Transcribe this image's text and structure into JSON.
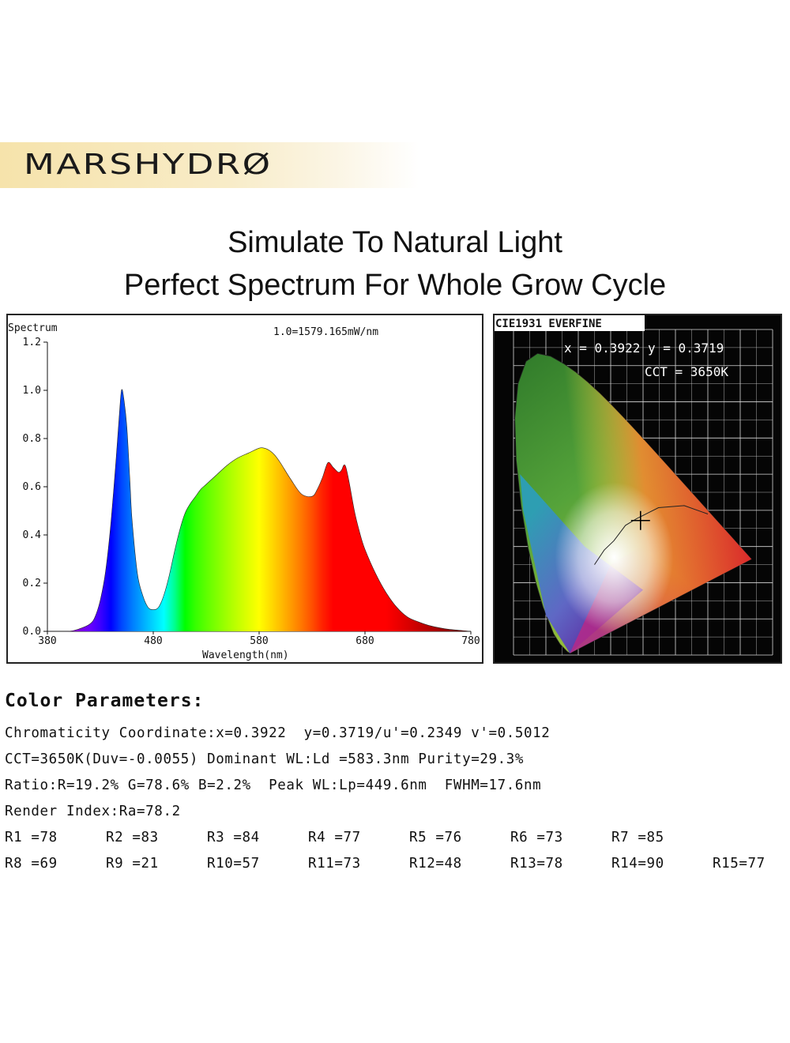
{
  "brand": {
    "logo_text": "MARSHYDRØ"
  },
  "headline": {
    "line1": "Simulate To Natural Light",
    "line2": "Perfect Spectrum For Whole Grow Cycle"
  },
  "chart_data": [
    {
      "type": "area",
      "title": "Spectrum",
      "annotation": "1.0=1579.165mW/nm",
      "xlabel": "Wavelength(nm)",
      "ylabel": "",
      "xlim": [
        380,
        780
      ],
      "ylim": [
        0,
        1.2
      ],
      "x_ticks": [
        "380",
        "480",
        "580",
        "680",
        "780"
      ],
      "y_ticks": [
        "0.0",
        "0.2",
        "0.4",
        "0.6",
        "0.8",
        "1.0",
        "1.2"
      ],
      "x": [
        380,
        400,
        410,
        420,
        425,
        430,
        435,
        440,
        445,
        448,
        450,
        452,
        455,
        458,
        460,
        465,
        470,
        475,
        480,
        485,
        490,
        495,
        500,
        505,
        510,
        515,
        520,
        525,
        530,
        540,
        550,
        560,
        570,
        580,
        585,
        590,
        595,
        600,
        610,
        620,
        630,
        635,
        640,
        645,
        650,
        655,
        658,
        660,
        662,
        665,
        670,
        675,
        680,
        690,
        700,
        710,
        720,
        730,
        740,
        750,
        760,
        770,
        780
      ],
      "values": [
        0.0,
        0.0,
        0.01,
        0.03,
        0.06,
        0.13,
        0.25,
        0.45,
        0.72,
        0.9,
        1.0,
        0.97,
        0.85,
        0.62,
        0.46,
        0.24,
        0.15,
        0.1,
        0.09,
        0.1,
        0.15,
        0.23,
        0.33,
        0.42,
        0.49,
        0.53,
        0.56,
        0.59,
        0.61,
        0.65,
        0.69,
        0.72,
        0.74,
        0.76,
        0.76,
        0.75,
        0.73,
        0.7,
        0.63,
        0.57,
        0.56,
        0.59,
        0.64,
        0.7,
        0.68,
        0.66,
        0.67,
        0.69,
        0.68,
        0.62,
        0.5,
        0.41,
        0.34,
        0.24,
        0.16,
        0.1,
        0.06,
        0.04,
        0.025,
        0.015,
        0.008,
        0.004,
        0.0
      ]
    },
    {
      "type": "scatter",
      "title": "CIE1931 EVERFINE",
      "annotation_xy": "x = 0.3922 y = 0.3719",
      "annotation_cct": "CCT = 3650K",
      "xlim": [
        0,
        0.8
      ],
      "ylim": [
        0,
        0.9
      ],
      "x": [
        0.3922
      ],
      "values": [
        0.3719
      ]
    }
  ],
  "params": {
    "title": "Color Parameters:",
    "line1": "Chromaticity Coordinate:x=0.3922  y=0.3719/u'=0.2349 v'=0.5012",
    "line2": "CCT=3650K(Duv=-0.0055) Dominant WL:Ld =583.3nm Purity=29.3%",
    "line3": "Ratio:R=19.2% G=78.6% B=2.2%  Peak WL:Lp=449.6nm  FWHM=17.6nm",
    "line4": "Render Index:Ra=78.2",
    "row1": [
      "R1 =78",
      "R2 =83",
      "R3 =84",
      "R4 =77",
      "R5 =76",
      "R6 =73",
      "R7 =85"
    ],
    "row2": [
      "R8 =69",
      "R9 =21",
      "R10=57",
      "R11=73",
      "R12=48",
      "R13=78",
      "R14=90",
      "R15=77"
    ]
  }
}
